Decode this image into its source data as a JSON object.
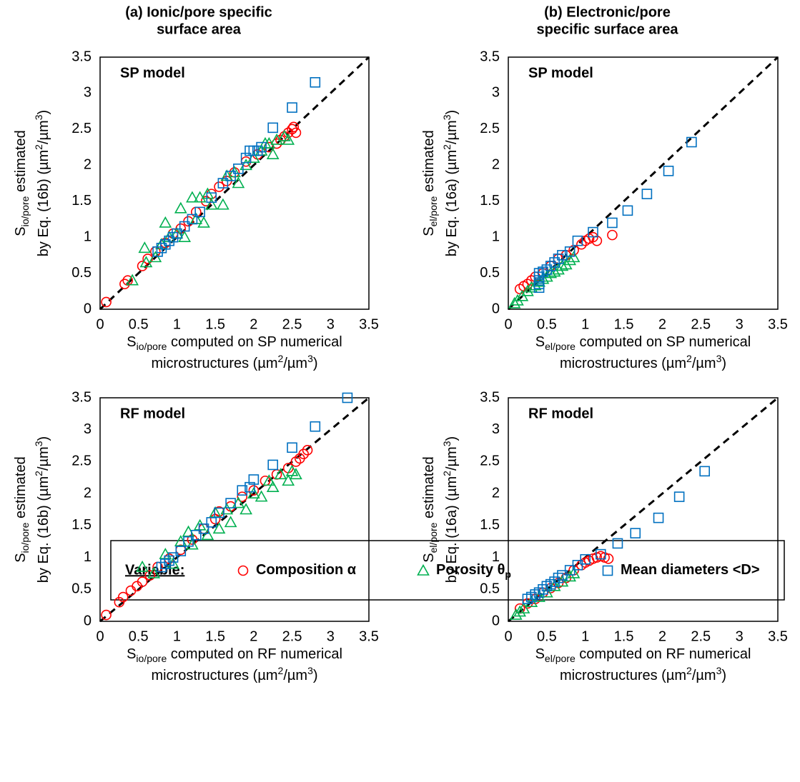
{
  "legend": {
    "title": "Variable:",
    "series": [
      {
        "name": [
          "Composition α"
        ],
        "color": "#ff0000",
        "marker": "circle"
      },
      {
        "name": [
          "Porosity θ",
          {
            "sub": "p"
          }
        ],
        "color": "#00b050",
        "marker": "triangle"
      },
      {
        "name": [
          "Mean diameters <D>"
        ],
        "color": "#0070c0",
        "marker": "square"
      }
    ]
  },
  "chart_data": [
    {
      "type": "scatter",
      "title": [
        "(a) Ionic/pore specific",
        "surface area"
      ],
      "annotation": "SP model",
      "annotation_color": "#ff0000",
      "x_label": [
        [
          "S",
          {
            "sub": "io/pore"
          },
          " computed on SP numerical"
        ],
        [
          "microstructures (µm",
          {
            "sup": "2"
          },
          "/µm",
          {
            "sup": "3"
          },
          ")"
        ]
      ],
      "y_label": [
        [
          "S",
          {
            "sub": "io/pore"
          },
          " estimated"
        ],
        [
          "by Eq. (16b) (µm",
          {
            "sup": "2"
          },
          "/µm",
          {
            "sup": "3"
          },
          ")"
        ]
      ],
      "xlim": [
        0,
        3.5
      ],
      "ylim": [
        0,
        3.5
      ],
      "xticks": [
        0,
        0.5,
        1,
        1.5,
        2,
        2.5,
        3,
        3.5
      ],
      "yticks": [
        0,
        0.5,
        1,
        1.5,
        2,
        2.5,
        3,
        3.5
      ],
      "series": [
        {
          "x": [
            0.08,
            0.32,
            0.36,
            0.55,
            0.62,
            0.72,
            0.85,
            0.95,
            1.05,
            1.15,
            1.25,
            1.38,
            1.45,
            1.55,
            1.65,
            1.75,
            1.9,
            2.05,
            2.2,
            2.3,
            2.4,
            2.45,
            2.5,
            2.55,
            2.52,
            2.35
          ],
          "values": [
            0.1,
            0.35,
            0.4,
            0.6,
            0.7,
            0.8,
            0.92,
            1.05,
            1.12,
            1.22,
            1.35,
            1.5,
            1.6,
            1.7,
            1.78,
            1.9,
            2.05,
            2.15,
            2.25,
            2.3,
            2.4,
            2.45,
            2.5,
            2.45,
            2.53,
            2.35
          ]
        },
        {
          "x": [
            0.42,
            0.58,
            0.6,
            0.72,
            0.8,
            0.85,
            0.9,
            1.0,
            1.05,
            1.1,
            1.2,
            1.25,
            1.3,
            1.35,
            1.4,
            1.45,
            1.6,
            1.65,
            1.75,
            1.8,
            1.9,
            2.0,
            2.1,
            2.2,
            2.25,
            2.3,
            2.4,
            2.45,
            2.15
          ],
          "values": [
            0.4,
            0.85,
            0.65,
            0.72,
            0.9,
            1.2,
            1.0,
            1.05,
            1.4,
            1.0,
            1.55,
            1.25,
            1.55,
            1.2,
            1.6,
            1.45,
            1.45,
            1.85,
            1.9,
            1.75,
            2.0,
            2.1,
            2.2,
            2.3,
            2.15,
            2.35,
            2.4,
            2.35,
            2.3
          ]
        },
        {
          "x": [
            0.75,
            0.8,
            0.85,
            0.9,
            0.95,
            1.0,
            1.1,
            1.2,
            1.3,
            1.45,
            1.6,
            1.7,
            1.8,
            1.9,
            1.95,
            2.0,
            2.05,
            2.1,
            2.25,
            2.5,
            2.8
          ],
          "values": [
            0.8,
            0.85,
            0.9,
            0.95,
            1.0,
            1.05,
            1.15,
            1.25,
            1.35,
            1.55,
            1.75,
            1.85,
            1.95,
            2.1,
            2.2,
            2.2,
            2.2,
            2.25,
            2.52,
            2.8,
            3.15
          ]
        }
      ]
    },
    {
      "type": "scatter",
      "title": [
        "(b) Electronic/pore",
        "specific surface area"
      ],
      "annotation": "SP model",
      "annotation_color": "#ff0000",
      "x_label": [
        [
          "S",
          {
            "sub": "el/pore"
          },
          " computed on SP numerical"
        ],
        [
          "microstructures (µm",
          {
            "sup": "2"
          },
          "/µm",
          {
            "sup": "3"
          },
          ")"
        ]
      ],
      "y_label": [
        [
          "S",
          {
            "sub": "el/pore"
          },
          " estimated"
        ],
        [
          "by Eq. (16a) (µm",
          {
            "sup": "2"
          },
          "/µm",
          {
            "sup": "3"
          },
          ")"
        ]
      ],
      "xlim": [
        0,
        3.5
      ],
      "ylim": [
        0,
        3.5
      ],
      "xticks": [
        0,
        0.5,
        1,
        1.5,
        2,
        2.5,
        3,
        3.5
      ],
      "yticks": [
        0,
        0.5,
        1,
        1.5,
        2,
        2.5,
        3,
        3.5
      ],
      "series": [
        {
          "x": [
            0.15,
            0.2,
            0.25,
            0.3,
            0.35,
            0.45,
            0.55,
            0.65,
            0.75,
            0.85,
            0.95,
            1.0,
            1.05,
            1.1,
            1.15,
            1.35
          ],
          "values": [
            0.28,
            0.32,
            0.35,
            0.4,
            0.45,
            0.5,
            0.6,
            0.7,
            0.75,
            0.82,
            0.9,
            0.95,
            0.98,
            1.0,
            0.95,
            1.03
          ]
        },
        {
          "x": [
            0.08,
            0.12,
            0.18,
            0.25,
            0.3,
            0.35,
            0.4,
            0.45,
            0.5,
            0.55,
            0.6,
            0.65,
            0.7,
            0.75,
            0.8,
            0.85
          ],
          "values": [
            0.08,
            0.12,
            0.18,
            0.25,
            0.3,
            0.33,
            0.38,
            0.42,
            0.45,
            0.5,
            0.52,
            0.55,
            0.6,
            0.62,
            0.68,
            0.72
          ]
        },
        {
          "x": [
            0.4,
            0.4,
            0.4,
            0.4,
            0.4,
            0.45,
            0.5,
            0.55,
            0.6,
            0.65,
            0.7,
            0.8,
            0.9,
            1.1,
            1.35,
            1.55,
            1.8,
            2.08,
            2.38
          ],
          "values": [
            0.3,
            0.35,
            0.4,
            0.45,
            0.5,
            0.52,
            0.55,
            0.6,
            0.65,
            0.7,
            0.75,
            0.8,
            0.95,
            1.07,
            1.2,
            1.37,
            1.6,
            1.92,
            2.32
          ]
        }
      ]
    },
    {
      "type": "scatter",
      "annotation": "RF model",
      "annotation_color": "#ff0000",
      "x_label": [
        [
          "S",
          {
            "sub": "io/pore"
          },
          " computed on RF numerical"
        ],
        [
          "microstructures (µm",
          {
            "sup": "2"
          },
          "/µm",
          {
            "sup": "3"
          },
          ")"
        ]
      ],
      "y_label": [
        [
          "S",
          {
            "sub": "io/pore"
          },
          " estimated"
        ],
        [
          "by Eq. (16b) (µm",
          {
            "sup": "2"
          },
          "/µm",
          {
            "sup": "3"
          },
          ")"
        ]
      ],
      "xlim": [
        0,
        3.5
      ],
      "ylim": [
        0,
        3.5
      ],
      "xticks": [
        0,
        0.5,
        1,
        1.5,
        2,
        2.5,
        3,
        3.5
      ],
      "yticks": [
        0,
        0.5,
        1,
        1.5,
        2,
        2.5,
        3,
        3.5
      ],
      "series": [
        {
          "x": [
            0.08,
            0.25,
            0.3,
            0.4,
            0.48,
            0.55,
            0.65,
            0.75,
            0.9,
            1.05,
            1.2,
            1.35,
            1.5,
            1.55,
            1.7,
            1.85,
            2.0,
            2.15,
            2.3,
            2.45,
            2.55,
            2.6,
            2.65,
            2.7
          ],
          "values": [
            0.1,
            0.3,
            0.38,
            0.48,
            0.55,
            0.62,
            0.72,
            0.85,
            0.98,
            1.12,
            1.28,
            1.45,
            1.6,
            1.72,
            1.8,
            1.95,
            2.05,
            2.2,
            2.3,
            2.4,
            2.5,
            2.55,
            2.62,
            2.68
          ]
        },
        {
          "x": [
            0.55,
            0.7,
            0.85,
            0.95,
            1.05,
            1.15,
            1.2,
            1.3,
            1.4,
            1.5,
            1.55,
            1.65,
            1.7,
            1.8,
            1.9,
            2.0,
            2.1,
            2.2,
            2.25,
            2.35,
            2.45,
            2.5,
            2.55
          ],
          "values": [
            0.85,
            0.75,
            1.05,
            0.9,
            1.25,
            1.4,
            1.2,
            1.5,
            1.35,
            1.7,
            1.45,
            1.75,
            1.55,
            1.85,
            1.75,
            2.0,
            1.95,
            2.2,
            2.1,
            2.3,
            2.2,
            2.35,
            2.3
          ]
        },
        {
          "x": [
            0.8,
            0.85,
            0.9,
            0.95,
            1.05,
            1.15,
            1.25,
            1.35,
            1.45,
            1.55,
            1.7,
            1.85,
            1.95,
            2.0,
            2.25,
            2.5,
            2.8,
            3.22
          ],
          "values": [
            0.85,
            0.9,
            0.95,
            1.0,
            1.1,
            1.25,
            1.35,
            1.45,
            1.55,
            1.7,
            1.85,
            2.05,
            2.1,
            2.22,
            2.45,
            2.72,
            3.05,
            3.5
          ]
        }
      ]
    },
    {
      "type": "scatter",
      "annotation": "RF model",
      "annotation_color": "#ff0000",
      "x_label": [
        [
          "S",
          {
            "sub": "el/pore"
          },
          " computed on RF numerical"
        ],
        [
          "microstructures (µm",
          {
            "sup": "2"
          },
          "/µm",
          {
            "sup": "3"
          },
          ")"
        ]
      ],
      "y_label": [
        [
          "S",
          {
            "sub": "el/pore"
          },
          " estimated"
        ],
        [
          "by Eq. (16a) (µm",
          {
            "sup": "2"
          },
          "/µm",
          {
            "sup": "3"
          },
          ")"
        ]
      ],
      "xlim": [
        0,
        3.5
      ],
      "ylim": [
        0,
        3.5
      ],
      "xticks": [
        0,
        0.5,
        1,
        1.5,
        2,
        2.5,
        3,
        3.5
      ],
      "yticks": [
        0,
        0.5,
        1,
        1.5,
        2,
        2.5,
        3,
        3.5
      ],
      "series": [
        {
          "x": [
            0.15,
            0.25,
            0.35,
            0.45,
            0.55,
            0.65,
            0.75,
            0.85,
            0.95,
            1.0,
            1.05,
            1.1,
            1.15,
            1.2,
            1.25,
            1.3
          ],
          "values": [
            0.2,
            0.28,
            0.35,
            0.45,
            0.52,
            0.6,
            0.68,
            0.8,
            0.88,
            0.92,
            0.95,
            0.98,
            1.0,
            1.02,
            1.0,
            0.98
          ]
        },
        {
          "x": [
            0.1,
            0.15,
            0.2,
            0.3,
            0.4,
            0.5,
            0.6,
            0.7,
            0.8,
            0.85
          ],
          "values": [
            0.1,
            0.15,
            0.2,
            0.3,
            0.38,
            0.45,
            0.55,
            0.62,
            0.7,
            0.75
          ]
        },
        {
          "x": [
            0.25,
            0.3,
            0.35,
            0.4,
            0.45,
            0.5,
            0.55,
            0.6,
            0.65,
            0.7,
            0.8,
            0.9,
            1.0,
            1.2,
            1.42,
            1.65,
            1.95,
            2.22,
            2.55
          ],
          "values": [
            0.35,
            0.38,
            0.42,
            0.45,
            0.5,
            0.55,
            0.58,
            0.62,
            0.68,
            0.72,
            0.8,
            0.88,
            0.97,
            1.05,
            1.22,
            1.38,
            1.62,
            1.95,
            2.35
          ]
        }
      ]
    }
  ]
}
